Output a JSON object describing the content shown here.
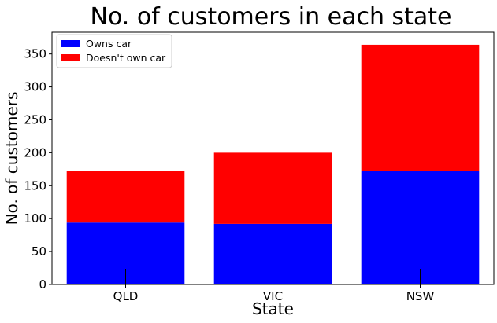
{
  "chart_data": {
    "type": "bar",
    "stacked": true,
    "title": "No. of customers in each state",
    "xlabel": "State",
    "ylabel": "No. of customers",
    "categories": [
      "QLD",
      "VIC",
      "NSW"
    ],
    "series": [
      {
        "name": "Owns car",
        "color": "#0000ff",
        "values": [
          94,
          92,
          173
        ]
      },
      {
        "name": "Doesn't own car",
        "color": "#ff0000",
        "values": [
          78,
          108,
          191
        ]
      }
    ],
    "ylim": [
      0,
      383
    ],
    "yticks": [
      0,
      50,
      100,
      150,
      200,
      250,
      300,
      350
    ],
    "legend": "upper-left",
    "grid": false
  }
}
